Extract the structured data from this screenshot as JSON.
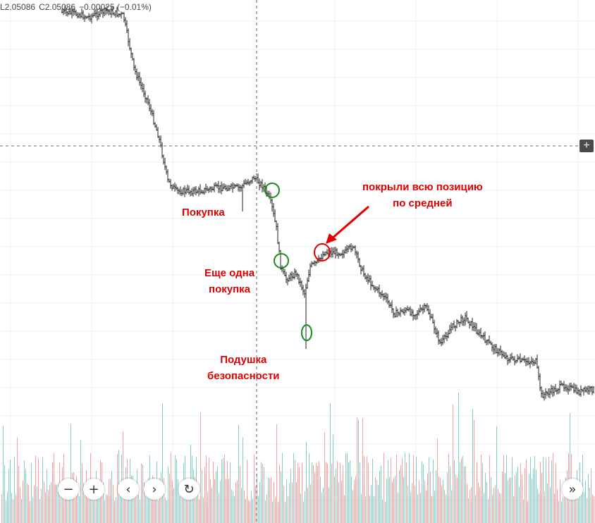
{
  "ohlc": {
    "low": "L2.05086",
    "close": "C2.05086",
    "change": "−0.00025 (−0.01%)"
  },
  "annotations": {
    "buy": "Покупка",
    "buy_again_1": "Еще одна",
    "buy_again_2": "покупка",
    "cushion_1": "Подушка",
    "cushion_2": "безопасности",
    "covered_1": "покрыли всю позицию",
    "covered_2": "по средней"
  },
  "colors": {
    "up": "#26a69a",
    "down": "#ef5350",
    "bar": "#222222",
    "annotation_red": "#e00000",
    "marker_green": "#1a8a1a"
  },
  "icons": {
    "zoom_out": "−",
    "zoom_in": "+",
    "scroll_left": "‹",
    "scroll_right": "›",
    "reset": "↻",
    "go_latest": "»",
    "add": "+"
  },
  "chart_data": {
    "type": "bar",
    "style": "ohlc",
    "grid": true,
    "crosshair": true,
    "volume_panel": true,
    "price_path": [
      [
        0,
        0.0
      ],
      [
        20,
        0.0
      ],
      [
        60,
        0.0
      ],
      [
        90,
        0.005
      ],
      [
        110,
        0.01
      ],
      [
        125,
        0.02
      ],
      [
        150,
        0.0
      ],
      [
        175,
        0.015
      ],
      [
        190,
        0.17
      ],
      [
        210,
        0.27
      ],
      [
        225,
        0.37
      ],
      [
        238,
        0.5
      ],
      [
        250,
        0.53
      ],
      [
        280,
        0.53
      ],
      [
        310,
        0.52
      ],
      [
        340,
        0.52
      ],
      [
        360,
        0.49
      ],
      [
        375,
        0.52
      ],
      [
        385,
        0.57
      ],
      [
        392,
        0.64
      ],
      [
        398,
        0.75
      ],
      [
        405,
        0.79
      ],
      [
        420,
        0.77
      ],
      [
        432,
        0.83
      ],
      [
        440,
        0.75
      ],
      [
        450,
        0.74
      ],
      [
        460,
        0.71
      ],
      [
        475,
        0.71
      ],
      [
        490,
        0.71
      ],
      [
        500,
        0.69
      ],
      [
        515,
        0.77
      ],
      [
        530,
        0.81
      ],
      [
        545,
        0.84
      ],
      [
        560,
        0.89
      ],
      [
        575,
        0.88
      ],
      [
        590,
        0.89
      ],
      [
        605,
        0.87
      ],
      [
        625,
        0.98
      ],
      [
        640,
        0.93
      ],
      [
        660,
        0.9
      ],
      [
        680,
        0.95
      ],
      [
        700,
        0.99
      ],
      [
        720,
        1.02
      ],
      [
        740,
        1.03
      ],
      [
        760,
        1.03
      ],
      [
        768,
        1.13
      ],
      [
        780,
        1.12
      ],
      [
        800,
        1.1
      ],
      [
        820,
        1.12
      ],
      [
        844,
        1.11
      ]
    ]
  }
}
